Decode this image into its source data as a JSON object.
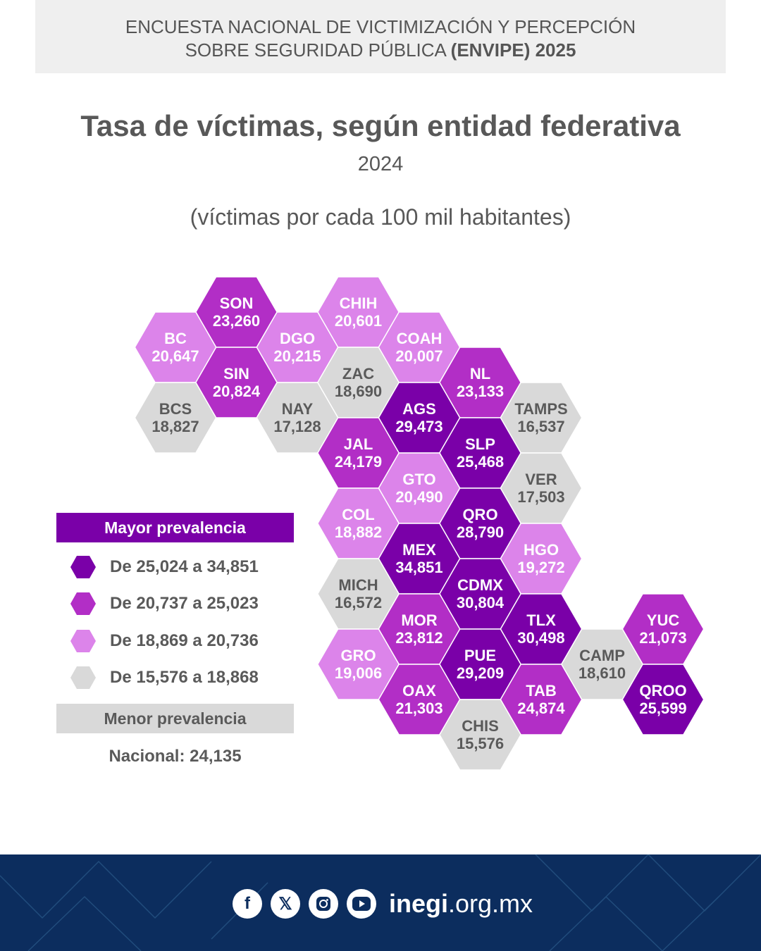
{
  "header": {
    "line1": "ENCUESTA NACIONAL DE VICTIMIZACIÓN Y PERCEPCIÓN",
    "line2_prefix": "SOBRE SEGURIDAD PÚBLICA ",
    "line2_bold": "(ENVIPE) 2025"
  },
  "title": "Tasa de víctimas, según entidad federativa",
  "year": "2024",
  "unit": "(víctimas por cada 100 mil habitantes)",
  "legend": {
    "top_label": "Mayor prevalencia",
    "bottom_label": "Menor prevalencia",
    "bins": [
      {
        "label": "De 25,024 a 34,851",
        "min": 25024,
        "max": 34851,
        "color": "#7a00a8"
      },
      {
        "label": "De 20,737 a 25,023",
        "min": 20737,
        "max": 25023,
        "color": "#b22ec6"
      },
      {
        "label": "De 18,869 a 20,736",
        "min": 18869,
        "max": 20736,
        "color": "#dc84ea"
      },
      {
        "label": "De 15,576 a 18,868",
        "min": 15576,
        "max": 18868,
        "color": "#d9d9d9"
      }
    ],
    "national": "Nacional: 24,135"
  },
  "chart_data": {
    "type": "hex-tile choropleth",
    "states": [
      {
        "code": "SON",
        "value": 23260
      },
      {
        "code": "CHIH",
        "value": 20601
      },
      {
        "code": "BC",
        "value": 20647
      },
      {
        "code": "DGO",
        "value": 20215
      },
      {
        "code": "COAH",
        "value": 20007
      },
      {
        "code": "SIN",
        "value": 20824
      },
      {
        "code": "ZAC",
        "value": 18690
      },
      {
        "code": "NL",
        "value": 23133
      },
      {
        "code": "BCS",
        "value": 18827
      },
      {
        "code": "NAY",
        "value": 17128
      },
      {
        "code": "AGS",
        "value": 29473
      },
      {
        "code": "TAMPS",
        "value": 16537
      },
      {
        "code": "JAL",
        "value": 24179
      },
      {
        "code": "SLP",
        "value": 25468
      },
      {
        "code": "GTO",
        "value": 20490
      },
      {
        "code": "VER",
        "value": 17503
      },
      {
        "code": "COL",
        "value": 18882
      },
      {
        "code": "QRO",
        "value": 28790
      },
      {
        "code": "MEX",
        "value": 34851
      },
      {
        "code": "HGO",
        "value": 19272
      },
      {
        "code": "MICH",
        "value": 16572
      },
      {
        "code": "CDMX",
        "value": 30804
      },
      {
        "code": "MOR",
        "value": 23812
      },
      {
        "code": "TLX",
        "value": 30498
      },
      {
        "code": "YUC",
        "value": 21073
      },
      {
        "code": "GRO",
        "value": 19006
      },
      {
        "code": "PUE",
        "value": 29209
      },
      {
        "code": "CAMP",
        "value": 18610
      },
      {
        "code": "OAX",
        "value": 21303
      },
      {
        "code": "TAB",
        "value": 24874
      },
      {
        "code": "QROO",
        "value": 25599
      },
      {
        "code": "CHIS",
        "value": 15576
      }
    ]
  },
  "footer": {
    "site_bold": "inegi",
    "site_rest": ".org.mx",
    "icons": [
      "facebook-icon",
      "x-icon",
      "instagram-icon",
      "youtube-icon"
    ]
  }
}
